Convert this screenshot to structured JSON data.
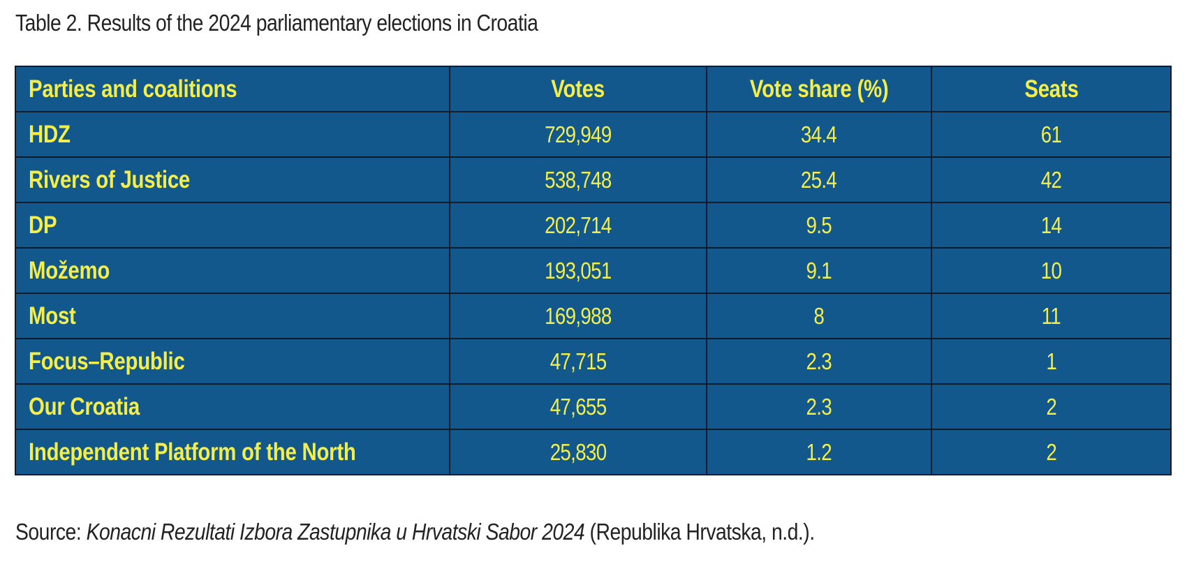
{
  "caption": "Table 2. Results of the 2024 parliamentary elections in Croatia",
  "table": {
    "headers": {
      "party": "Parties and coalitions",
      "votes": "Votes",
      "share": "Vote share (%)",
      "seats": "Seats"
    },
    "rows": [
      {
        "party": "HDZ",
        "votes": "729,949",
        "share": "34.4",
        "seats": "61"
      },
      {
        "party": "Rivers of Justice",
        "votes": "538,748",
        "share": "25.4",
        "seats": "42"
      },
      {
        "party": "DP",
        "votes": "202,714",
        "share": "9.5",
        "seats": "14"
      },
      {
        "party": "Možemo",
        "votes": "193,051",
        "share": "9.1",
        "seats": "10"
      },
      {
        "party": "Most",
        "votes": "169,988",
        "share": "8",
        "seats": "11"
      },
      {
        "party": "Focus–Republic",
        "votes": "47,715",
        "share": "2.3",
        "seats": "1"
      },
      {
        "party": "Our Croatia",
        "votes": "47,655",
        "share": "2.3",
        "seats": "2"
      },
      {
        "party": "Independent Platform of the North",
        "votes": "25,830",
        "share": "1.2",
        "seats": "2"
      }
    ],
    "colors": {
      "background": "#13588c",
      "text": "#f4ee4a",
      "border": "#0e1b2a"
    }
  },
  "source": {
    "prefix": "Source: ",
    "title": "Konacni Rezultati Izbora Zastupnika u Hrvatski Sabor 2024",
    "suffix": " (Republika Hrvatska, n.d.)."
  }
}
